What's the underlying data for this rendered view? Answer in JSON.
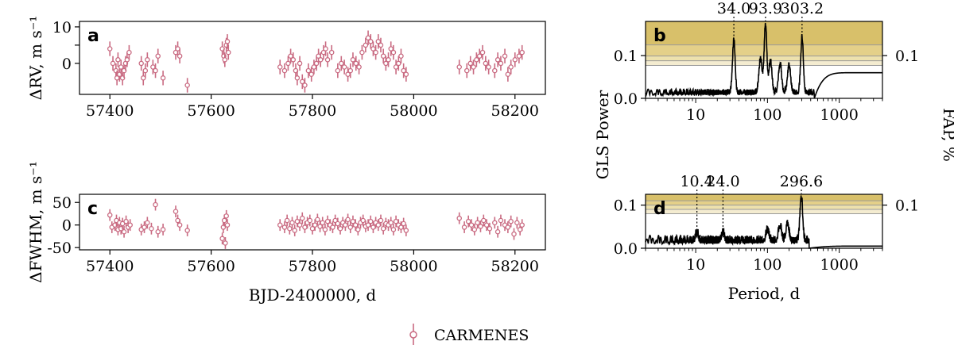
{
  "colors": {
    "points": "#c96b82",
    "fap_bands": [
      "#d8c06a",
      "#e4d089",
      "#ede1ad",
      "#f4ecd0",
      "#f9f5e6"
    ],
    "periodogram": "#000000"
  },
  "legend": {
    "label": "CARMENES"
  },
  "chart_data": [
    {
      "id": "a",
      "type": "scatter",
      "panel_letter": "a",
      "xlabel": "",
      "ylabel": "ΔRV, m s⁻¹",
      "xlim": [
        57340,
        58260
      ],
      "ylim": [
        -8.5,
        11.5
      ],
      "xticks": [
        57400,
        57600,
        57800,
        58000,
        58200
      ],
      "yticks": [
        0,
        5,
        10
      ],
      "ytick_labels": [
        "0",
        "",
        "10"
      ],
      "errorbar": 2.0,
      "series": [
        {
          "name": "CARMENES",
          "x": [
            57400,
            57406,
            57412,
            57414,
            57416,
            57419,
            57422,
            57425,
            57428,
            57431,
            57434,
            57438,
            57462,
            57466,
            57470,
            57474,
            57485,
            57490,
            57495,
            57505,
            57530,
            57534,
            57538,
            57553,
            57622,
            57625,
            57627,
            57630,
            57632,
            57634,
            57736,
            57745,
            57752,
            57757,
            57762,
            57767,
            57770,
            57775,
            57780,
            57785,
            57792,
            57798,
            57803,
            57808,
            57812,
            57816,
            57822,
            57826,
            57830,
            57838,
            57850,
            57857,
            57863,
            57870,
            57875,
            57880,
            57886,
            57892,
            57898,
            57905,
            57910,
            57915,
            57920,
            57925,
            57930,
            57935,
            57940,
            57945,
            57950,
            57955,
            57960,
            57965,
            57970,
            57975,
            57980,
            57985,
            58090,
            58105,
            58112,
            58118,
            58124,
            58130,
            58136,
            58142,
            58148,
            58160,
            58166,
            58172,
            58180,
            58186,
            58192,
            58200,
            58208,
            58214
          ],
          "y": [
            4,
            0,
            -2,
            -4,
            1,
            -3,
            -1,
            -4,
            -2,
            0,
            1,
            3,
            0,
            -4,
            -2,
            1,
            -1,
            -2,
            2,
            -4,
            3,
            4,
            2,
            -6,
            4,
            2,
            1,
            5,
            6,
            3,
            -1,
            -2,
            0,
            2,
            1,
            -2,
            -4,
            0,
            -5,
            -6,
            -2,
            -3,
            -1,
            0,
            2,
            1,
            3,
            4,
            1,
            3,
            -2,
            0,
            -1,
            -3,
            -2,
            1,
            0,
            -1,
            3,
            5,
            7,
            6,
            4,
            3,
            6,
            5,
            2,
            0,
            1,
            4,
            3,
            -1,
            0,
            2,
            -2,
            -3,
            -1,
            -2,
            0,
            -1,
            1,
            2,
            3,
            0,
            -1,
            -2,
            1,
            0,
            2,
            -3,
            -1,
            1,
            2,
            3
          ]
        }
      ]
    },
    {
      "id": "c",
      "type": "scatter",
      "panel_letter": "c",
      "xlabel": "BJD-2400000, d",
      "ylabel": "ΔFWHM, m s⁻¹",
      "xlim": [
        57340,
        58260
      ],
      "ylim": [
        -55,
        68
      ],
      "xticks": [
        57400,
        57600,
        57800,
        58000,
        58200
      ],
      "yticks": [
        -50,
        0,
        50
      ],
      "errorbar": 13,
      "series": [
        {
          "name": "CARMENES",
          "x": [
            57400,
            57404,
            57410,
            57413,
            57416,
            57419,
            57422,
            57425,
            57428,
            57432,
            57436,
            57440,
            57462,
            57468,
            57474,
            57482,
            57490,
            57495,
            57505,
            57530,
            57534,
            57538,
            57553,
            57622,
            57624,
            57626,
            57628,
            57630,
            57632,
            57736,
            57745,
            57750,
            57755,
            57760,
            57765,
            57770,
            57775,
            57780,
            57785,
            57790,
            57795,
            57800,
            57805,
            57810,
            57815,
            57820,
            57825,
            57830,
            57835,
            57840,
            57845,
            57850,
            57855,
            57860,
            57865,
            57870,
            57875,
            57880,
            57885,
            57890,
            57895,
            57900,
            57905,
            57910,
            57915,
            57920,
            57925,
            57930,
            57935,
            57940,
            57945,
            57950,
            57955,
            57960,
            57965,
            57970,
            57975,
            57980,
            57985,
            58090,
            58100,
            58108,
            58114,
            58120,
            58126,
            58132,
            58138,
            58144,
            58150,
            58160,
            58166,
            58172,
            58180,
            58186,
            58192,
            58198,
            58204,
            58210,
            58214
          ],
          "y": [
            22,
            -5,
            0,
            10,
            -10,
            5,
            -8,
            3,
            -15,
            8,
            -5,
            0,
            -10,
            -5,
            5,
            -8,
            45,
            -15,
            -10,
            30,
            10,
            0,
            -12,
            -30,
            -5,
            10,
            -40,
            20,
            0,
            0,
            -5,
            10,
            -8,
            5,
            -12,
            8,
            0,
            15,
            -5,
            5,
            10,
            -8,
            0,
            12,
            -3,
            5,
            -10,
            8,
            0,
            -5,
            10,
            3,
            -8,
            5,
            0,
            12,
            -5,
            8,
            0,
            -10,
            5,
            10,
            -3,
            0,
            8,
            -5,
            5,
            0,
            10,
            -8,
            3,
            0,
            5,
            -10,
            8,
            0,
            -5,
            3,
            -12,
            15,
            -5,
            8,
            0,
            -10,
            5,
            -3,
            10,
            0,
            -8,
            5,
            -15,
            10,
            0,
            -5,
            8,
            -20,
            5,
            -10,
            0
          ]
        }
      ]
    },
    {
      "id": "b",
      "type": "line",
      "panel_letter": "b",
      "xlabel": "",
      "ylabel": "",
      "xscale": "log",
      "xlim": [
        2,
        4000
      ],
      "ylim": [
        0,
        0.18
      ],
      "xticks": [
        10,
        100,
        1000
      ],
      "yticks": [
        0,
        0.1
      ],
      "ytick_labels": [
        "0.0",
        "0.1"
      ],
      "right_ticks": [
        0.1
      ],
      "right_tick_labels": [
        "0.1"
      ],
      "fap_levels": [
        0.18,
        0.125,
        0.099,
        0.088,
        0.077
      ],
      "peaks": [
        {
          "period": 34.0,
          "label": "34.0",
          "power": 0.125
        },
        {
          "period": 93.9,
          "label": "93.9",
          "power": 0.16
        },
        {
          "period": 303.2,
          "label": "303.2",
          "power": 0.13
        }
      ],
      "noise_level": 0.022,
      "tail": 0.06
    },
    {
      "id": "d",
      "type": "line",
      "panel_letter": "d",
      "xlabel": "Period, d",
      "ylabel": "",
      "xscale": "log",
      "xlim": [
        2,
        4000
      ],
      "ylim": [
        0,
        0.125
      ],
      "xticks": [
        10,
        100,
        1000
      ],
      "yticks": [
        0,
        0.1
      ],
      "ytick_labels": [
        "0.0",
        "0.1"
      ],
      "right_ticks": [
        0.1
      ],
      "right_tick_labels": [
        "0.1"
      ],
      "fap_levels": [
        0.125,
        0.11,
        0.1,
        0.09,
        0.08
      ],
      "peaks": [
        {
          "period": 10.4,
          "label": "10.4",
          "power": 0.02
        },
        {
          "period": 24.0,
          "label": "24.0",
          "power": 0.02
        },
        {
          "period": 296.6,
          "label": "296.6",
          "power": 0.103
        }
      ],
      "noise_level": 0.03,
      "tail": 0.005
    }
  ],
  "shared_labels": {
    "gls_ylabel": "GLS Power",
    "fap_ylabel": "FAP, %"
  }
}
